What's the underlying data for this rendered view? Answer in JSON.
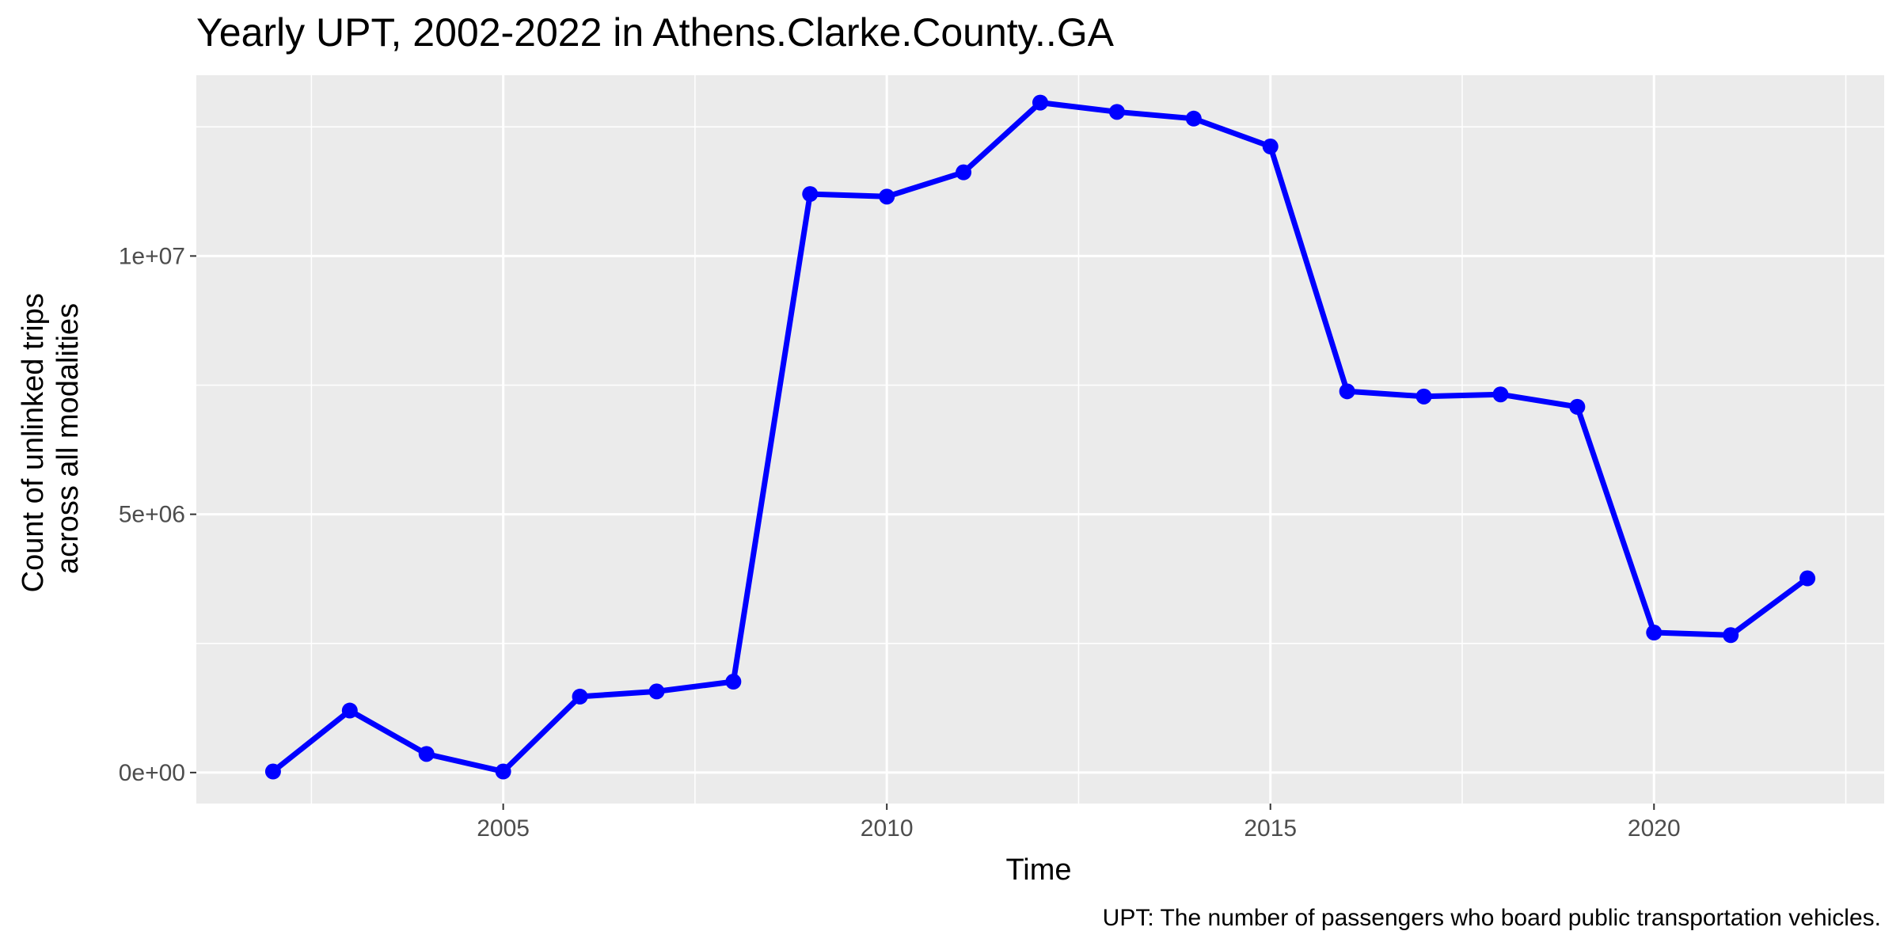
{
  "chart_data": {
    "type": "line",
    "title": "Yearly UPT, 2002-2022 in Athens.Clarke.County..GA",
    "xlabel": "Time",
    "ylabel_lines": [
      "Count of unlinked trips",
      "across all modalities"
    ],
    "caption": "UPT: The number of passengers who board public transportation vehicles.",
    "xlim": [
      2001,
      2023
    ],
    "ylim": [
      -600000,
      13500000
    ],
    "x_ticks": [
      {
        "value": 2005,
        "label": "2005"
      },
      {
        "value": 2010,
        "label": "2010"
      },
      {
        "value": 2015,
        "label": "2015"
      },
      {
        "value": 2020,
        "label": "2020"
      }
    ],
    "y_ticks": [
      {
        "value": 0,
        "label": "0e+00"
      },
      {
        "value": 5000000,
        "label": "5e+06"
      },
      {
        "value": 10000000,
        "label": "1e+07"
      }
    ],
    "grid": true,
    "series_color": "#0000ff",
    "panel_color": "#ebebeb",
    "x": [
      2002,
      2003,
      2004,
      2005,
      2006,
      2007,
      2008,
      2009,
      2010,
      2011,
      2012,
      2013,
      2014,
      2015,
      2016,
      2017,
      2018,
      2019,
      2020,
      2021,
      2022
    ],
    "values": [
      20000,
      1200000,
      360000,
      20000,
      1470000,
      1570000,
      1760000,
      11200000,
      11150000,
      11620000,
      12970000,
      12790000,
      12660000,
      12120000,
      7380000,
      7280000,
      7320000,
      7080000,
      2710000,
      2660000,
      3760000
    ]
  }
}
